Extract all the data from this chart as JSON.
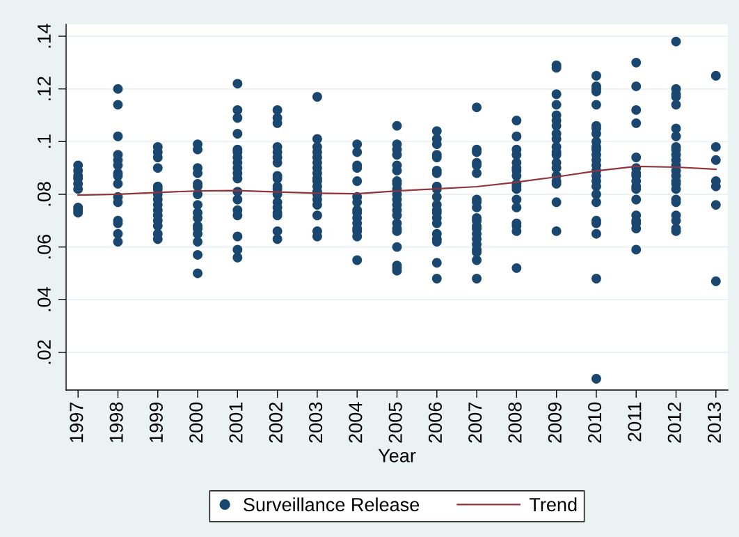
{
  "chart_data": {
    "type": "scatter",
    "xlabel": "Year",
    "xlim": [
      1996.7,
      2013.3
    ],
    "xticks": [
      1997,
      1998,
      1999,
      2000,
      2001,
      2002,
      2003,
      2004,
      2005,
      2006,
      2007,
      2008,
      2009,
      2010,
      2011,
      2012,
      2013
    ],
    "ylim": [
      0.0057,
      0.1445
    ],
    "yticks": [
      {
        "value": 0.02,
        "label": ".02"
      },
      {
        "value": 0.04,
        "label": ".04"
      },
      {
        "value": 0.06,
        "label": ".06"
      },
      {
        "value": 0.08,
        "label": ".08"
      },
      {
        "value": 0.1,
        "label": ".1"
      },
      {
        "value": 0.12,
        "label": ".12"
      },
      {
        "value": 0.14,
        "label": ".14"
      }
    ],
    "grid": "y",
    "legend": "bottom",
    "series": [
      {
        "name": "Surveillance Release",
        "color": "#1a476f",
        "marker": "circle",
        "x": [
          1997,
          1997,
          1997,
          1997,
          1997,
          1997,
          1997,
          1997,
          1997,
          1998,
          1998,
          1998,
          1998,
          1998,
          1998,
          1998,
          1998,
          1998,
          1998,
          1998,
          1998,
          1998,
          1998,
          1998,
          1999,
          1999,
          1999,
          1999,
          1999,
          1999,
          1999,
          1999,
          1999,
          1999,
          1999,
          1999,
          1999,
          1999,
          1999,
          2000,
          2000,
          2000,
          2000,
          2000,
          2000,
          2000,
          2000,
          2000,
          2000,
          2000,
          2000,
          2000,
          2000,
          2000,
          2000,
          2001,
          2001,
          2001,
          2001,
          2001,
          2001,
          2001,
          2001,
          2001,
          2001,
          2001,
          2001,
          2001,
          2001,
          2001,
          2001,
          2001,
          2001,
          2002,
          2002,
          2002,
          2002,
          2002,
          2002,
          2002,
          2002,
          2002,
          2002,
          2002,
          2002,
          2002,
          2002,
          2002,
          2002,
          2002,
          2002,
          2003,
          2003,
          2003,
          2003,
          2003,
          2003,
          2003,
          2003,
          2003,
          2003,
          2003,
          2003,
          2003,
          2003,
          2003,
          2003,
          2003,
          2003,
          2004,
          2004,
          2004,
          2004,
          2004,
          2004,
          2004,
          2004,
          2004,
          2004,
          2004,
          2004,
          2004,
          2004,
          2004,
          2005,
          2005,
          2005,
          2005,
          2005,
          2005,
          2005,
          2005,
          2005,
          2005,
          2005,
          2005,
          2005,
          2005,
          2005,
          2005,
          2005,
          2005,
          2005,
          2005,
          2005,
          2006,
          2006,
          2006,
          2006,
          2006,
          2006,
          2006,
          2006,
          2006,
          2006,
          2006,
          2006,
          2006,
          2006,
          2006,
          2006,
          2006,
          2006,
          2006,
          2006,
          2007,
          2007,
          2007,
          2007,
          2007,
          2007,
          2007,
          2007,
          2007,
          2007,
          2007,
          2007,
          2007,
          2007,
          2007,
          2007,
          2007,
          2007,
          2007,
          2007,
          2008,
          2008,
          2008,
          2008,
          2008,
          2008,
          2008,
          2008,
          2008,
          2008,
          2008,
          2008,
          2008,
          2008,
          2008,
          2008,
          2008,
          2009,
          2009,
          2009,
          2009,
          2009,
          2009,
          2009,
          2009,
          2009,
          2009,
          2009,
          2009,
          2009,
          2009,
          2009,
          2009,
          2009,
          2009,
          2009,
          2010,
          2010,
          2010,
          2010,
          2010,
          2010,
          2010,
          2010,
          2010,
          2010,
          2010,
          2010,
          2010,
          2010,
          2010,
          2010,
          2010,
          2010,
          2010,
          2010,
          2010,
          2010,
          2010,
          2010,
          2010,
          2011,
          2011,
          2011,
          2011,
          2011,
          2011,
          2011,
          2011,
          2011,
          2011,
          2011,
          2011,
          2011,
          2011,
          2011,
          2011,
          2011,
          2012,
          2012,
          2012,
          2012,
          2012,
          2012,
          2012,
          2012,
          2012,
          2012,
          2012,
          2012,
          2012,
          2012,
          2012,
          2012,
          2012,
          2012,
          2012,
          2012,
          2012,
          2012,
          2012,
          2013,
          2013,
          2013,
          2013,
          2013,
          2013,
          2013
        ],
        "values": [
          0.091,
          0.089,
          0.087,
          0.086,
          0.084,
          0.082,
          0.075,
          0.074,
          0.073,
          0.12,
          0.114,
          0.102,
          0.095,
          0.093,
          0.091,
          0.088,
          0.087,
          0.084,
          0.079,
          0.077,
          0.07,
          0.069,
          0.065,
          0.062,
          0.098,
          0.096,
          0.094,
          0.09,
          0.083,
          0.082,
          0.08,
          0.078,
          0.076,
          0.074,
          0.072,
          0.07,
          0.068,
          0.065,
          0.063,
          0.099,
          0.097,
          0.09,
          0.088,
          0.084,
          0.083,
          0.08,
          0.076,
          0.073,
          0.071,
          0.068,
          0.067,
          0.065,
          0.062,
          0.057,
          0.05,
          0.122,
          0.112,
          0.109,
          0.103,
          0.097,
          0.096,
          0.094,
          0.092,
          0.09,
          0.088,
          0.086,
          0.081,
          0.078,
          0.074,
          0.072,
          0.064,
          0.059,
          0.056,
          0.112,
          0.109,
          0.107,
          0.098,
          0.096,
          0.094,
          0.092,
          0.087,
          0.086,
          0.083,
          0.082,
          0.08,
          0.077,
          0.075,
          0.073,
          0.072,
          0.066,
          0.063,
          0.117,
          0.101,
          0.098,
          0.096,
          0.094,
          0.092,
          0.09,
          0.088,
          0.086,
          0.085,
          0.083,
          0.081,
          0.08,
          0.078,
          0.076,
          0.072,
          0.066,
          0.064,
          0.099,
          0.096,
          0.091,
          0.09,
          0.085,
          0.079,
          0.077,
          0.074,
          0.073,
          0.071,
          0.069,
          0.067,
          0.066,
          0.064,
          0.055,
          0.106,
          0.099,
          0.097,
          0.095,
          0.091,
          0.089,
          0.085,
          0.084,
          0.082,
          0.08,
          0.078,
          0.076,
          0.074,
          0.072,
          0.069,
          0.067,
          0.066,
          0.06,
          0.053,
          0.052,
          0.051,
          0.104,
          0.101,
          0.099,
          0.095,
          0.094,
          0.089,
          0.088,
          0.083,
          0.082,
          0.079,
          0.076,
          0.074,
          0.073,
          0.071,
          0.069,
          0.065,
          0.063,
          0.062,
          0.054,
          0.048,
          0.113,
          0.097,
          0.096,
          0.092,
          0.091,
          0.088,
          0.078,
          0.077,
          0.075,
          0.071,
          0.07,
          0.068,
          0.067,
          0.065,
          0.063,
          0.061,
          0.059,
          0.058,
          0.055,
          0.048,
          0.108,
          0.102,
          0.097,
          0.095,
          0.092,
          0.09,
          0.089,
          0.087,
          0.084,
          0.083,
          0.082,
          0.078,
          0.075,
          0.069,
          0.068,
          0.066,
          0.052,
          0.129,
          0.128,
          0.118,
          0.114,
          0.11,
          0.108,
          0.106,
          0.103,
          0.101,
          0.098,
          0.096,
          0.095,
          0.092,
          0.09,
          0.087,
          0.085,
          0.084,
          0.077,
          0.066,
          0.125,
          0.121,
          0.12,
          0.119,
          0.114,
          0.106,
          0.105,
          0.103,
          0.1,
          0.098,
          0.097,
          0.095,
          0.093,
          0.091,
          0.089,
          0.087,
          0.085,
          0.083,
          0.08,
          0.077,
          0.07,
          0.069,
          0.065,
          0.048,
          0.01,
          0.13,
          0.121,
          0.112,
          0.107,
          0.094,
          0.09,
          0.088,
          0.087,
          0.085,
          0.083,
          0.082,
          0.078,
          0.072,
          0.07,
          0.069,
          0.067,
          0.059,
          0.138,
          0.12,
          0.118,
          0.117,
          0.114,
          0.105,
          0.102,
          0.098,
          0.097,
          0.095,
          0.093,
          0.091,
          0.089,
          0.087,
          0.085,
          0.084,
          0.082,
          0.078,
          0.077,
          0.072,
          0.07,
          0.067,
          0.066,
          0.125,
          0.098,
          0.093,
          0.085,
          0.083,
          0.076,
          0.047
        ]
      },
      {
        "type": "line",
        "name": "Trend",
        "color": "#90353b",
        "line_style": "solid",
        "x": [
          1997,
          1998,
          1999,
          2000,
          2001,
          2002,
          2003,
          2004,
          2005,
          2006,
          2007,
          2008,
          2009,
          2010,
          2011,
          2012,
          2013
        ],
        "values": [
          0.0797,
          0.08,
          0.0807,
          0.0813,
          0.0814,
          0.0809,
          0.0804,
          0.0802,
          0.0813,
          0.0821,
          0.0829,
          0.0846,
          0.0866,
          0.0889,
          0.0906,
          0.0903,
          0.0895
        ]
      }
    ]
  }
}
